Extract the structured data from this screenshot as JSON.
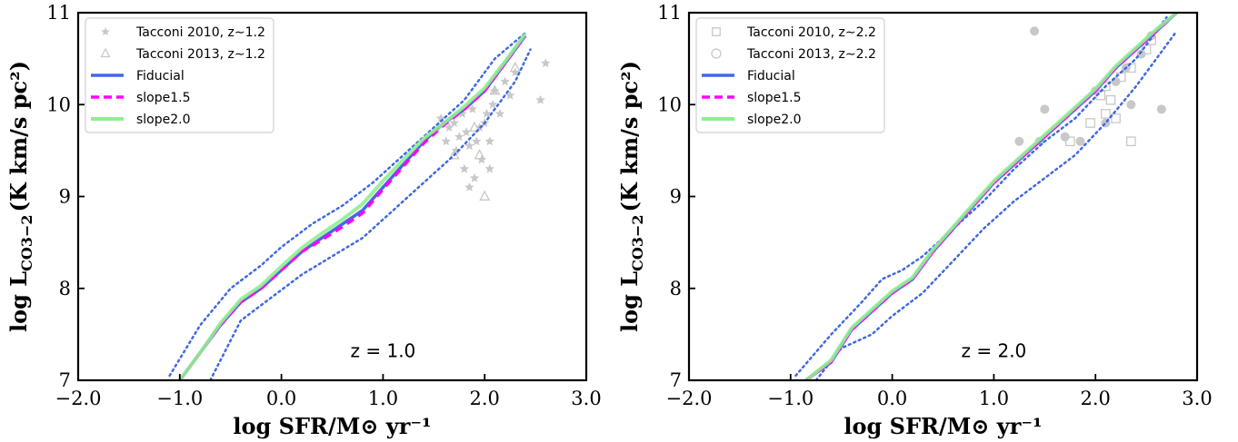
{
  "chart_data": [
    {
      "type": "line",
      "xlabel": "log SFR/M⊙ yr⁻¹",
      "ylabel_main": "log L",
      "ylabel_sub": "CO3−2",
      "ylabel_unit": "(K km/s pc²)",
      "xlim": [
        -2.0,
        3.0
      ],
      "ylim": [
        7,
        11
      ],
      "xticks": [
        -2.0,
        -1.0,
        0.0,
        1.0,
        2.0,
        3.0
      ],
      "xtick_labels": [
        "−2.0",
        "−1.0",
        "0.0",
        "1.0",
        "2.0",
        "3.0"
      ],
      "yticks": [
        7,
        8,
        9,
        10,
        11
      ],
      "ytick_labels": [
        "7",
        "8",
        "9",
        "10",
        "11"
      ],
      "grid": false,
      "legend_position": "top-left",
      "annotation": "z = 1.0",
      "colors": {
        "fiducial": "#4169e1",
        "slope15": "#ff00ff",
        "slope20": "#90ee90",
        "obs": "#c8c8c8"
      },
      "legend": [
        {
          "label": "Tacconi 2010, z∼1.2",
          "kind": "marker",
          "marker": "star"
        },
        {
          "label": "Tacconi 2013, z∼1.2",
          "kind": "marker",
          "marker": "triangle"
        },
        {
          "label": "Fiducial",
          "kind": "line",
          "style": "solid",
          "color": "#4169e1"
        },
        {
          "label": "slope1.5",
          "kind": "line",
          "style": "dashed",
          "color": "#ff00ff"
        },
        {
          "label": "slope2.0",
          "kind": "line",
          "style": "solid",
          "color": "#90ee90"
        }
      ],
      "series": [
        {
          "name": "Fiducial",
          "style": "solid",
          "x": [
            -1.0,
            -0.8,
            -0.6,
            -0.4,
            -0.2,
            0.0,
            0.2,
            0.4,
            0.6,
            0.8,
            1.0,
            1.2,
            1.4,
            1.6,
            1.8,
            2.0,
            2.2,
            2.4
          ],
          "y": [
            7.0,
            7.3,
            7.6,
            7.85,
            8.0,
            8.2,
            8.4,
            8.55,
            8.7,
            8.85,
            9.1,
            9.35,
            9.6,
            9.8,
            9.95,
            10.15,
            10.45,
            10.75
          ]
        },
        {
          "name": "slope1.5",
          "style": "dashed",
          "x": [
            -1.0,
            -0.8,
            -0.6,
            -0.4,
            -0.2,
            0.0,
            0.2,
            0.4,
            0.6,
            0.8,
            1.0,
            1.2,
            1.4,
            1.6,
            1.8,
            2.0,
            2.2,
            2.4
          ],
          "y": [
            7.0,
            7.3,
            7.6,
            7.85,
            8.0,
            8.2,
            8.4,
            8.53,
            8.67,
            8.82,
            9.08,
            9.33,
            9.58,
            9.78,
            9.95,
            10.15,
            10.45,
            10.75
          ]
        },
        {
          "name": "slope2.0",
          "style": "solid",
          "x": [
            -1.0,
            -0.8,
            -0.6,
            -0.4,
            -0.2,
            0.0,
            0.2,
            0.4,
            0.6,
            0.8,
            1.0,
            1.2,
            1.4,
            1.6,
            1.8,
            2.0,
            2.2,
            2.4
          ],
          "y": [
            7.0,
            7.3,
            7.62,
            7.88,
            8.03,
            8.24,
            8.44,
            8.6,
            8.75,
            8.92,
            9.17,
            9.4,
            9.63,
            9.8,
            9.98,
            10.18,
            10.47,
            10.77
          ]
        }
      ],
      "bands": [
        {
          "name": "upper",
          "x": [
            -1.1,
            -0.8,
            -0.5,
            -0.2,
            0.0,
            0.3,
            0.6,
            0.9,
            1.2,
            1.5,
            1.8,
            2.1,
            2.4
          ],
          "y": [
            7.05,
            7.6,
            8.0,
            8.25,
            8.45,
            8.7,
            8.9,
            9.15,
            9.45,
            9.75,
            10.05,
            10.5,
            10.78
          ]
        },
        {
          "name": "lower",
          "x": [
            -0.7,
            -0.4,
            -0.1,
            0.2,
            0.5,
            0.8,
            1.1,
            1.4,
            1.7,
            2.0,
            2.3,
            2.45
          ],
          "y": [
            7.0,
            7.65,
            7.9,
            8.15,
            8.35,
            8.55,
            8.85,
            9.15,
            9.45,
            9.8,
            10.25,
            10.6
          ]
        }
      ],
      "scatter": [
        {
          "name": "Tacconi 2010, z∼1.2",
          "marker": "star",
          "points": [
            [
              1.57,
              9.85
            ],
            [
              1.62,
              9.6
            ],
            [
              1.65,
              9.75
            ],
            [
              1.7,
              9.8
            ],
            [
              1.72,
              9.5
            ],
            [
              1.75,
              9.65
            ],
            [
              1.78,
              9.9
            ],
            [
              1.8,
              9.3
            ],
            [
              1.82,
              9.7
            ],
            [
              1.85,
              9.55
            ],
            [
              1.88,
              9.95
            ],
            [
              1.9,
              9.2
            ],
            [
              1.92,
              9.6
            ],
            [
              1.95,
              9.75
            ],
            [
              1.97,
              9.4
            ],
            [
              2.0,
              9.8
            ],
            [
              2.02,
              9.9
            ],
            [
              2.05,
              9.6
            ],
            [
              2.08,
              10.0
            ],
            [
              2.1,
              10.15
            ],
            [
              2.15,
              9.9
            ],
            [
              2.2,
              10.25
            ],
            [
              2.25,
              10.1
            ],
            [
              2.3,
              10.35
            ],
            [
              2.05,
              9.3
            ],
            [
              1.85,
              9.1
            ],
            [
              2.6,
              10.45
            ],
            [
              2.55,
              10.05
            ]
          ]
        },
        {
          "name": "Tacconi 2013, z∼1.2",
          "marker": "triangle",
          "points": [
            [
              1.7,
              9.45
            ],
            [
              1.9,
              9.75
            ],
            [
              1.95,
              9.45
            ],
            [
              2.0,
              9.0
            ],
            [
              2.1,
              10.15
            ],
            [
              2.3,
              10.4
            ]
          ]
        }
      ]
    },
    {
      "type": "line",
      "xlabel": "log SFR/M⊙ yr⁻¹",
      "ylabel_main": "log L",
      "ylabel_sub": "CO3−2",
      "ylabel_unit": "(K km/s pc²)",
      "xlim": [
        -2.0,
        3.0
      ],
      "ylim": [
        7,
        11
      ],
      "xticks": [
        -2.0,
        -1.0,
        0.0,
        1.0,
        2.0,
        3.0
      ],
      "xtick_labels": [
        "−2.0",
        "−1.0",
        "0.0",
        "1.0",
        "2.0",
        "3.0"
      ],
      "yticks": [
        7,
        8,
        9,
        10,
        11
      ],
      "ytick_labels": [
        "7",
        "8",
        "9",
        "10",
        "11"
      ],
      "grid": false,
      "legend_position": "top-left",
      "annotation": "z = 2.0",
      "colors": {
        "fiducial": "#4169e1",
        "slope15": "#ff00ff",
        "slope20": "#90ee90",
        "obs": "#c8c8c8"
      },
      "legend": [
        {
          "label": "Tacconi 2010, z∼2.2",
          "kind": "marker",
          "marker": "square"
        },
        {
          "label": "Tacconi 2013, z∼2.2",
          "kind": "marker",
          "marker": "circle"
        },
        {
          "label": "Fiducial",
          "kind": "line",
          "style": "solid",
          "color": "#4169e1"
        },
        {
          "label": "slope1.5",
          "kind": "line",
          "style": "dashed",
          "color": "#ff00ff"
        },
        {
          "label": "slope2.0",
          "kind": "line",
          "style": "solid",
          "color": "#90ee90"
        }
      ],
      "series": [
        {
          "name": "Fiducial",
          "style": "solid",
          "x": [
            -0.85,
            -0.6,
            -0.4,
            -0.2,
            0.0,
            0.2,
            0.4,
            0.6,
            0.8,
            1.0,
            1.2,
            1.4,
            1.6,
            1.8,
            2.0,
            2.2,
            2.4,
            2.6,
            2.8
          ],
          "y": [
            7.0,
            7.2,
            7.55,
            7.75,
            7.95,
            8.1,
            8.4,
            8.65,
            8.9,
            9.15,
            9.35,
            9.55,
            9.75,
            9.95,
            10.15,
            10.4,
            10.6,
            10.8,
            11.0
          ]
        },
        {
          "name": "slope1.5",
          "style": "dashed",
          "x": [
            -0.85,
            -0.6,
            -0.4,
            -0.2,
            0.0,
            0.2,
            0.4,
            0.6,
            0.8,
            1.0,
            1.2,
            1.4,
            1.6,
            1.8,
            2.0,
            2.2,
            2.4,
            2.6,
            2.8
          ],
          "y": [
            7.0,
            7.2,
            7.55,
            7.75,
            7.95,
            8.1,
            8.4,
            8.65,
            8.9,
            9.15,
            9.35,
            9.55,
            9.75,
            9.95,
            10.15,
            10.4,
            10.6,
            10.8,
            11.0
          ]
        },
        {
          "name": "slope2.0",
          "style": "solid",
          "x": [
            -0.85,
            -0.6,
            -0.4,
            -0.2,
            0.0,
            0.2,
            0.4,
            0.6,
            0.8,
            1.0,
            1.2,
            1.4,
            1.6,
            1.8,
            2.0,
            2.2,
            2.4,
            2.6,
            2.8
          ],
          "y": [
            7.0,
            7.22,
            7.57,
            7.77,
            7.97,
            8.12,
            8.42,
            8.67,
            8.92,
            9.17,
            9.37,
            9.57,
            9.77,
            9.97,
            10.17,
            10.42,
            10.62,
            10.82,
            11.0
          ]
        }
      ],
      "bands": [
        {
          "name": "upper",
          "x": [
            -0.95,
            -0.6,
            -0.3,
            -0.1,
            0.1,
            0.3,
            0.6,
            0.9,
            1.2,
            1.5,
            1.8,
            2.1,
            2.4,
            2.7
          ],
          "y": [
            7.05,
            7.5,
            7.85,
            8.1,
            8.2,
            8.35,
            8.65,
            8.95,
            9.3,
            9.6,
            9.85,
            10.2,
            10.5,
            10.95
          ]
        },
        {
          "name": "lower",
          "x": [
            -0.75,
            -0.5,
            -0.2,
            0.0,
            0.3,
            0.6,
            0.9,
            1.2,
            1.5,
            1.8,
            2.1,
            2.4,
            2.6,
            2.8
          ],
          "y": [
            7.0,
            7.35,
            7.5,
            7.7,
            7.95,
            8.3,
            8.65,
            8.95,
            9.2,
            9.45,
            9.8,
            10.2,
            10.5,
            10.8
          ]
        }
      ],
      "scatter": [
        {
          "name": "Tacconi 2010, z∼2.2",
          "marker": "square",
          "points": [
            [
              1.75,
              9.6
            ],
            [
              1.95,
              9.8
            ],
            [
              2.05,
              10.1
            ],
            [
              2.1,
              9.9
            ],
            [
              2.1,
              10.2
            ],
            [
              2.15,
              10.05
            ],
            [
              2.2,
              9.85
            ],
            [
              2.25,
              10.3
            ],
            [
              2.35,
              10.4
            ],
            [
              2.35,
              9.6
            ],
            [
              2.5,
              10.6
            ],
            [
              2.55,
              10.7
            ]
          ]
        },
        {
          "name": "Tacconi 2013, z∼2.2",
          "marker": "circle",
          "points": [
            [
              1.4,
              10.8
            ],
            [
              1.25,
              9.6
            ],
            [
              1.45,
              9.6
            ],
            [
              1.5,
              9.95
            ],
            [
              1.7,
              9.65
            ],
            [
              1.85,
              9.6
            ],
            [
              2.0,
              10.15
            ],
            [
              2.1,
              9.8
            ],
            [
              2.2,
              10.25
            ],
            [
              2.3,
              10.4
            ],
            [
              2.35,
              10.0
            ],
            [
              2.45,
              10.55
            ],
            [
              2.65,
              9.95
            ],
            [
              2.55,
              10.75
            ]
          ]
        }
      ]
    }
  ]
}
